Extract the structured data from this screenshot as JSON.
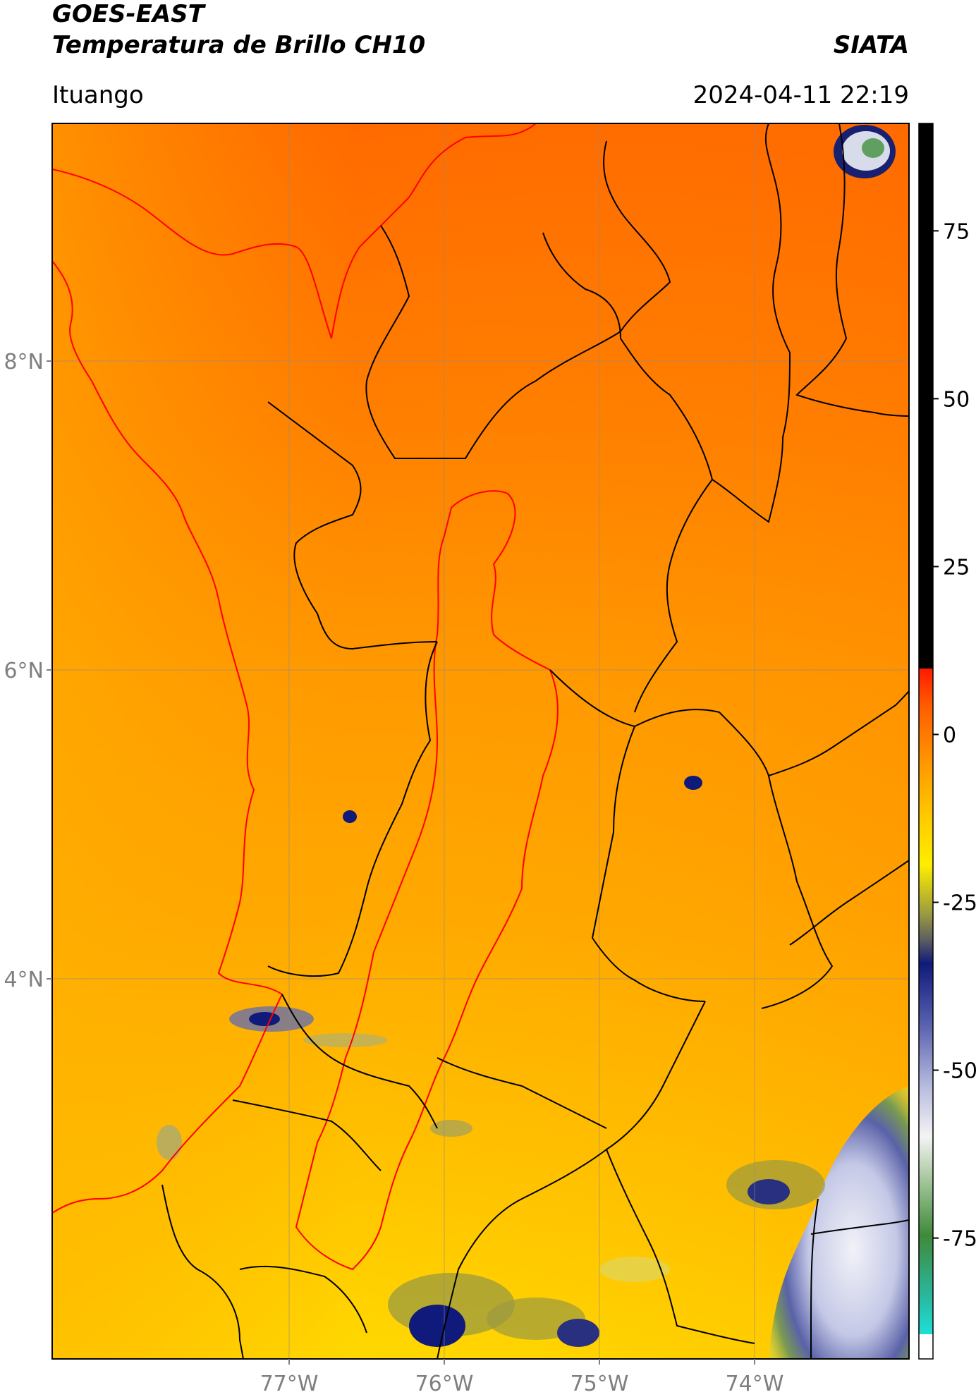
{
  "header": {
    "title_line1": "GOES-EAST",
    "title_line2": "Temperatura de Brillo CH10",
    "agency": "SIATA",
    "place": "Ituango",
    "timestamp": "2024-04-11 22:19"
  },
  "map": {
    "longitude_ticks": [
      "77°W",
      "76°W",
      "75°W",
      "74°W"
    ],
    "latitude_ticks": [
      "8°N",
      "6°N",
      "4°N"
    ],
    "lon_range": [
      -78.55,
      -73.0
    ],
    "lat_range": [
      1.0,
      9.55
    ],
    "gridlines": true
  },
  "colorbar": {
    "ticks": [
      "75",
      "50",
      "25",
      "0",
      "-25",
      "-50",
      "-75"
    ],
    "tick_values": [
      75,
      50,
      25,
      0,
      -25,
      -50,
      -75
    ],
    "range": [
      -93,
      91
    ],
    "colors": {
      "warm_black": "#000000",
      "red": "#ff1a00",
      "orange": "#ff7a00",
      "yellow": "#ffee00",
      "olive": "#9a9a40",
      "navy": "#101a7a",
      "lavender": "#b8bce0",
      "white": "#f4f4f4",
      "green": "#3f8a3a",
      "cyan": "#1ee0d6"
    }
  }
}
